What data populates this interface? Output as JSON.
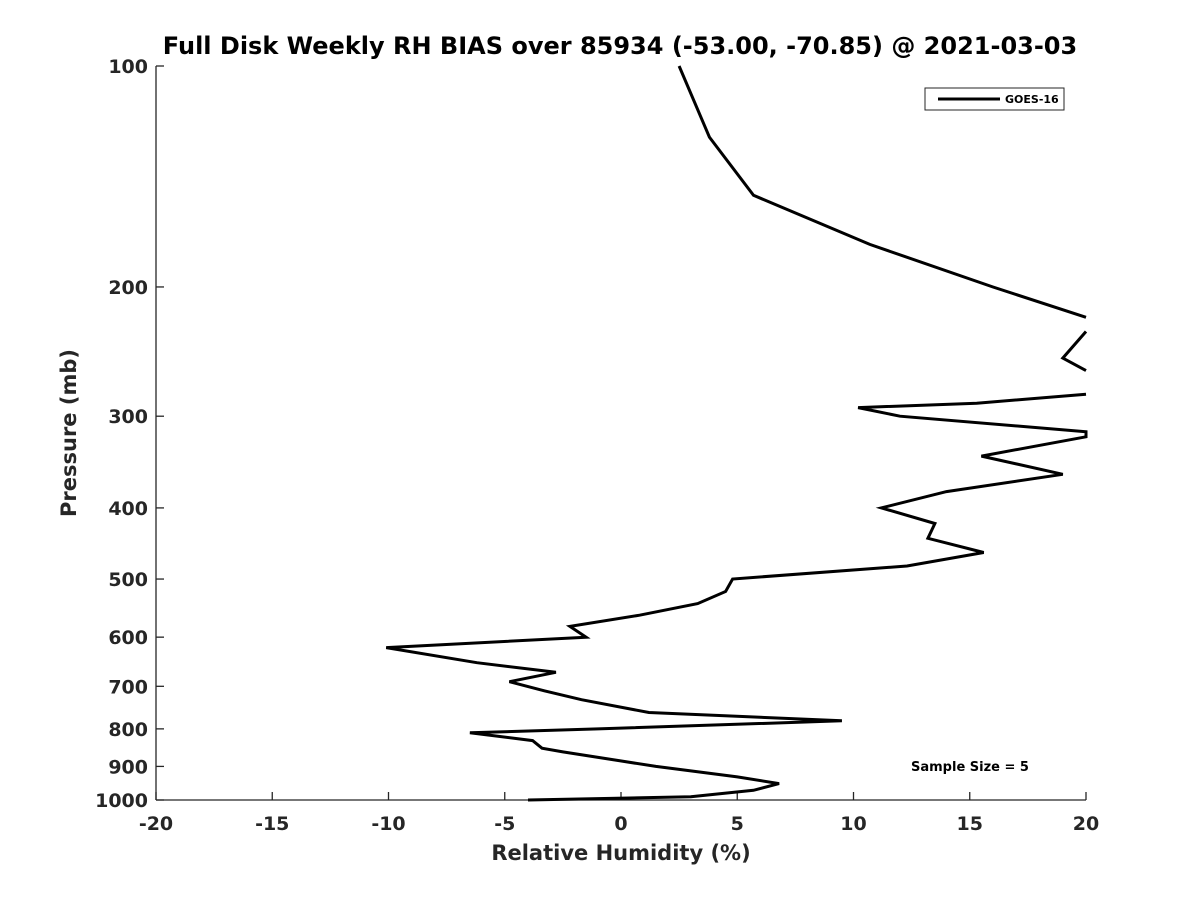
{
  "chart_data": {
    "type": "line",
    "title": "Full Disk Weekly RH BIAS over 85934 (-53.00, -70.85) @ 2021-03-03",
    "xlabel": "Relative Humidity (%)",
    "ylabel": "Pressure (mb)",
    "xlim": [
      -20,
      20
    ],
    "ylim": [
      100,
      1000
    ],
    "yscale": "log",
    "y_reversed": true,
    "x_ticks": [
      -20,
      -15,
      -10,
      -5,
      0,
      5,
      10,
      15,
      20
    ],
    "x_tick_labels": [
      "-20",
      "-15",
      "-10",
      "-5",
      "0",
      "5",
      "10",
      "15",
      "20"
    ],
    "y_ticks": [
      100,
      200,
      300,
      400,
      500,
      600,
      700,
      800,
      900,
      1000
    ],
    "y_tick_labels": [
      "100",
      "200",
      "300",
      "400",
      "500",
      "600",
      "700",
      "800",
      "900",
      "1000"
    ],
    "grid": false,
    "legend_position": "top-right",
    "annotation": "Sample Size = 5",
    "series": [
      {
        "name": "GOES-16",
        "color": "#000000",
        "segments": [
          [
            {
              "x": 2.5,
              "y": 100
            },
            {
              "x": 3.8,
              "y": 125
            },
            {
              "x": 5.7,
              "y": 150
            },
            {
              "x": 10.7,
              "y": 175
            },
            {
              "x": 16.0,
              "y": 200
            },
            {
              "x": 20.0,
              "y": 220
            }
          ],
          [
            {
              "x": 20.0,
              "y": 230
            },
            {
              "x": 19.0,
              "y": 250
            },
            {
              "x": 20.0,
              "y": 260
            }
          ],
          [
            {
              "x": 20.0,
              "y": 280
            },
            {
              "x": 15.3,
              "y": 288
            },
            {
              "x": 10.2,
              "y": 292
            },
            {
              "x": 12.0,
              "y": 300
            },
            {
              "x": 20.0,
              "y": 315
            },
            {
              "x": 20.0,
              "y": 320
            },
            {
              "x": 15.5,
              "y": 340
            },
            {
              "x": 19.0,
              "y": 360
            },
            {
              "x": 14.0,
              "y": 380
            },
            {
              "x": 11.2,
              "y": 400
            },
            {
              "x": 13.5,
              "y": 420
            },
            {
              "x": 13.2,
              "y": 440
            },
            {
              "x": 15.6,
              "y": 460
            },
            {
              "x": 12.3,
              "y": 480
            },
            {
              "x": 4.8,
              "y": 500
            },
            {
              "x": 4.5,
              "y": 520
            },
            {
              "x": 3.3,
              "y": 540
            },
            {
              "x": 0.8,
              "y": 560
            },
            {
              "x": -2.2,
              "y": 580
            },
            {
              "x": -1.5,
              "y": 600
            },
            {
              "x": -10.1,
              "y": 620
            },
            {
              "x": -6.2,
              "y": 650
            },
            {
              "x": -2.8,
              "y": 670
            },
            {
              "x": -4.8,
              "y": 690
            },
            {
              "x": -3.3,
              "y": 710
            },
            {
              "x": -1.7,
              "y": 730
            },
            {
              "x": 1.2,
              "y": 760
            },
            {
              "x": 9.5,
              "y": 780
            },
            {
              "x": -1.0,
              "y": 800
            },
            {
              "x": -6.5,
              "y": 810
            },
            {
              "x": -3.8,
              "y": 830
            },
            {
              "x": -3.4,
              "y": 850
            },
            {
              "x": -2.5,
              "y": 860
            },
            {
              "x": 1.5,
              "y": 900
            },
            {
              "x": 5.0,
              "y": 930
            },
            {
              "x": 6.8,
              "y": 950
            },
            {
              "x": 5.7,
              "y": 970
            },
            {
              "x": 3.0,
              "y": 990
            },
            {
              "x": -4.0,
              "y": 1000
            }
          ]
        ]
      }
    ]
  }
}
